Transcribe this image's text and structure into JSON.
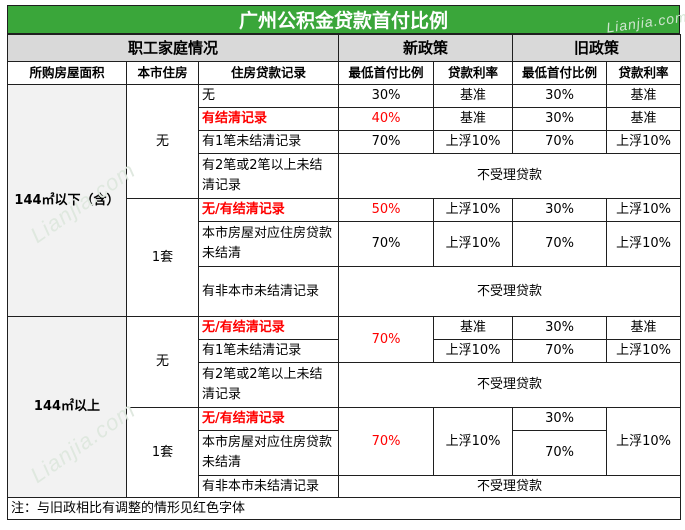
{
  "title": "广州公积金贷款首付比例",
  "headers": {
    "family": "职工家庭情况",
    "new_policy": "新政策",
    "old_policy": "旧政策",
    "area": "所购房屋面积",
    "local_housing": "本市住房",
    "loan_record": "住房贷款记录",
    "min_down_new": "最低首付比例",
    "rate_new": "贷款利率",
    "min_down_old": "最低首付比例",
    "rate_old": "贷款利率"
  },
  "sections": {
    "s1": {
      "area": "144㎡以下（含）",
      "none": "无",
      "one": "1套",
      "r1": {
        "record": "无",
        "new_down": "30%",
        "new_rate": "基准",
        "old_down": "30%",
        "old_rate": "基准"
      },
      "r2": {
        "record": "有结清记录",
        "new_down": "40%",
        "new_rate": "基准",
        "old_down": "30%",
        "old_rate": "基准"
      },
      "r3": {
        "record": "有1笔未结清记录",
        "new_down": "70%",
        "new_rate": "上浮10%",
        "old_down": "70%",
        "old_rate": "上浮10%"
      },
      "r4": {
        "record": "有2笔或2笔以上未结清记录",
        "result": "不受理贷款"
      },
      "r5": {
        "record": "无/有结清记录",
        "new_down": "50%",
        "new_rate": "上浮10%",
        "old_down": "30%",
        "old_rate": "上浮10%"
      },
      "r6": {
        "record": "本市房屋对应住房贷款未结清",
        "new_down": "70%",
        "new_rate": "上浮10%",
        "old_down": "70%",
        "old_rate": "上浮10%"
      },
      "r7": {
        "record": "有非本市未结清记录",
        "result": "不受理贷款"
      }
    },
    "s2": {
      "area": "144㎡以上",
      "none": "无",
      "one": "1套",
      "r1": {
        "record": "无/有结清记录",
        "new_down": "70%",
        "new_rate": "基准",
        "old_down": "30%",
        "old_rate": "基准"
      },
      "r2": {
        "record": "有1笔未结清记录",
        "new_rate": "上浮10%",
        "old_down": "70%",
        "old_rate": "上浮10%"
      },
      "r3": {
        "record": "有2笔或2笔以上未结清记录",
        "result": "不受理贷款"
      },
      "r4": {
        "record": "无/有结清记录",
        "new_down": "70%",
        "new_rate": "上浮10%",
        "old_down_a": "30%",
        "old_down_b": "70%",
        "old_rate": "上浮10%"
      },
      "r5": {
        "record": "本市房屋对应住房贷款未结清"
      },
      "r6": {
        "record": "有非本市未结清记录",
        "result": "不受理贷款"
      }
    }
  },
  "note": "注：与旧政相比有调整的情形见红色字体",
  "watermark": "Lianjia.com",
  "colors": {
    "title_bg": "#3aa63a",
    "header_bg": "#d9d9d9",
    "highlight": "#ff0000"
  }
}
